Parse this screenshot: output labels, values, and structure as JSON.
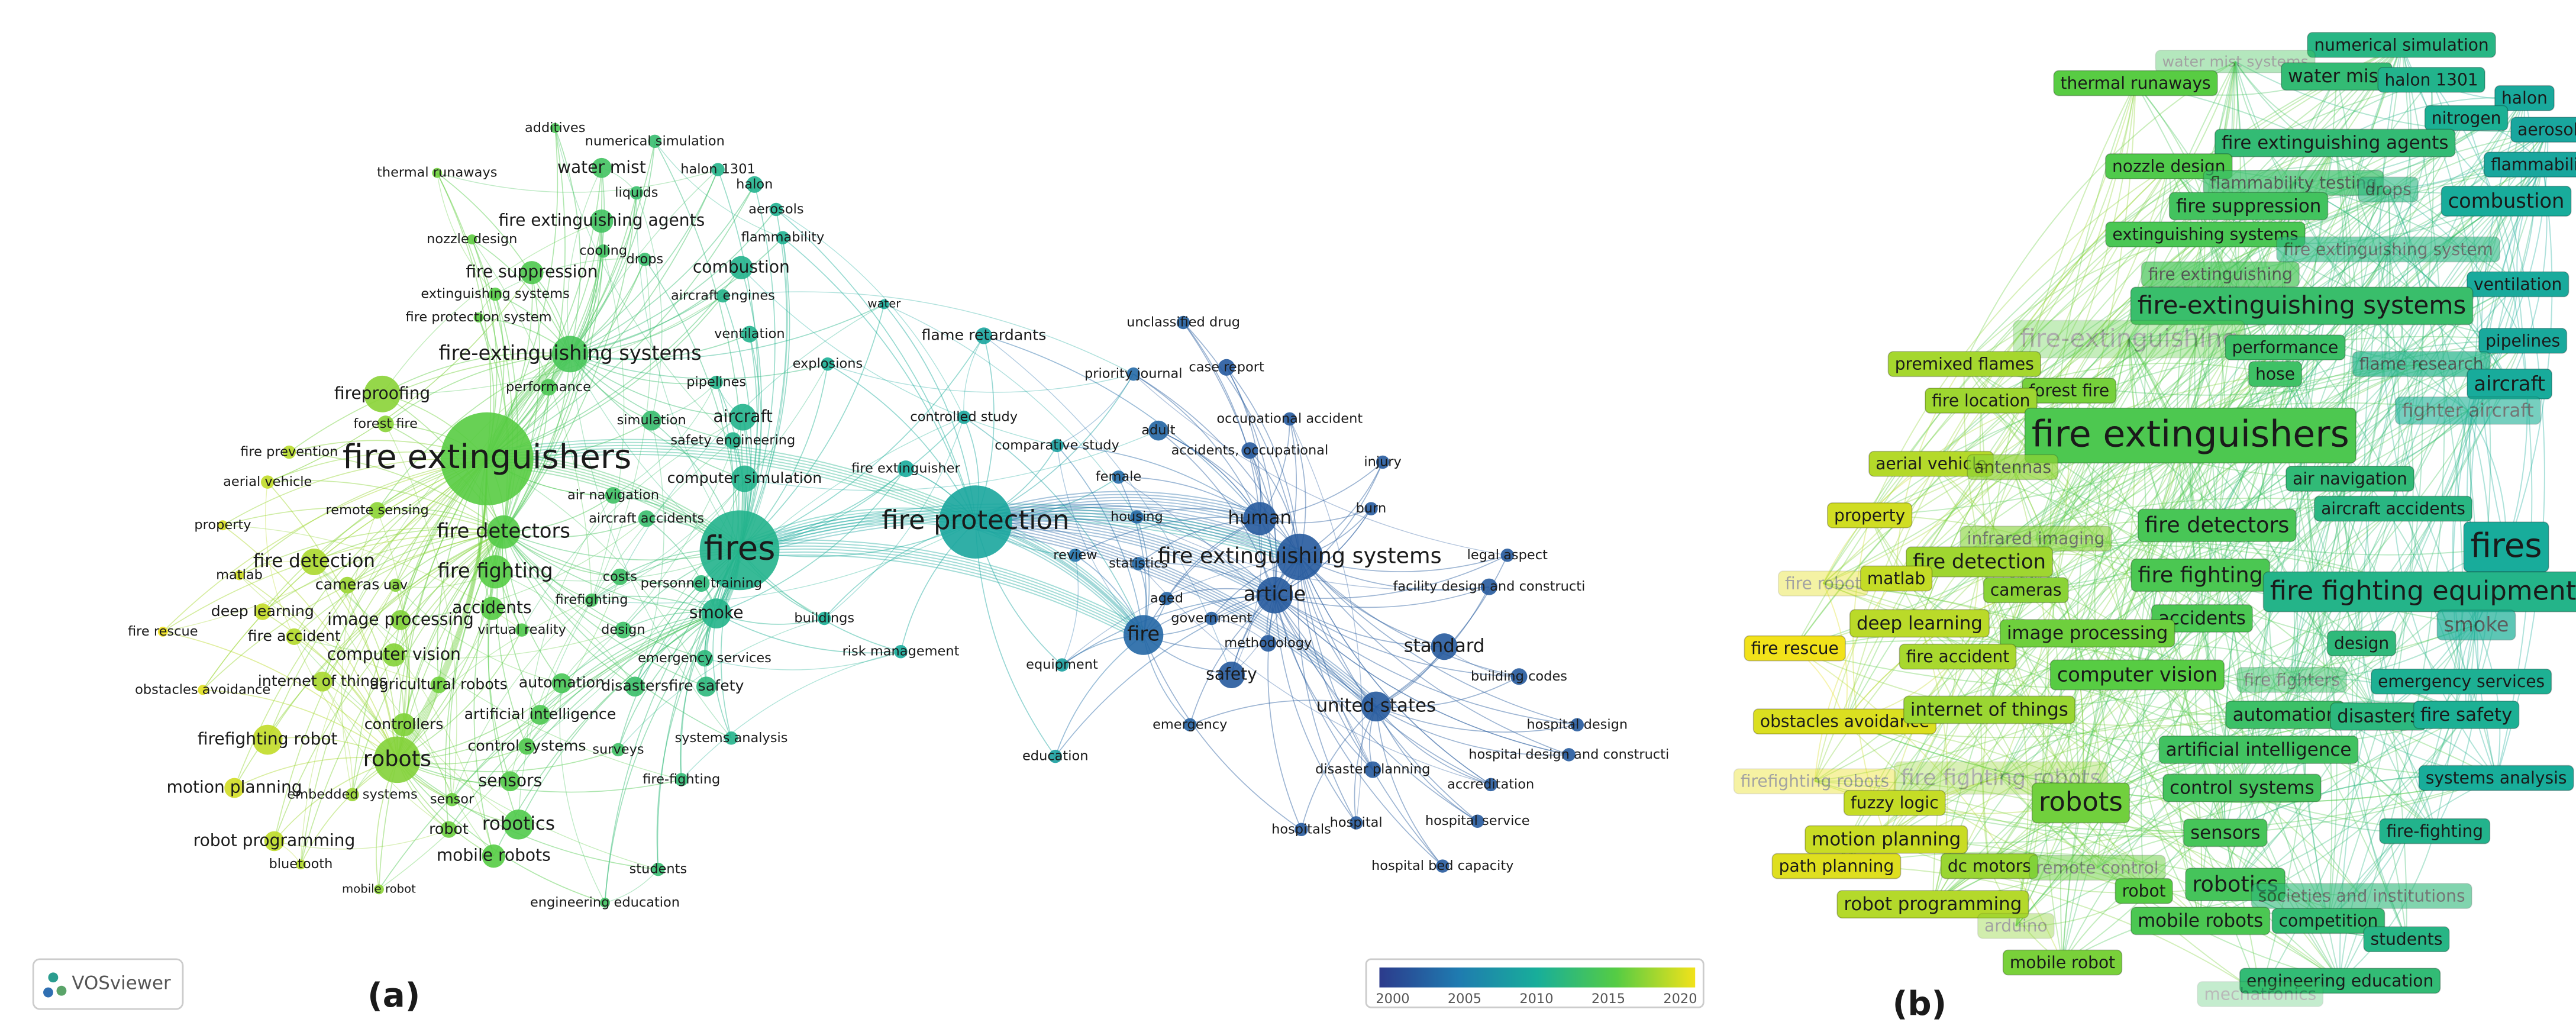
{
  "panel_a": {
    "caption": "(a)",
    "logo": "VOSviewer",
    "colorbar_ticks": [
      "2000",
      "2005",
      "2010",
      "2015",
      "2020"
    ],
    "nodes": [
      "fire extinguishers",
      "fires",
      "fire protection",
      "fire extinguishing systems",
      "article",
      "fire",
      "human",
      "standard",
      "united states",
      "safety",
      "fire-extinguishing systems",
      "robots",
      "robotics",
      "fire detectors",
      "fire fighting",
      "fire detection",
      "fireproofing",
      "smoke",
      "aircraft",
      "combustion",
      "fire suppression",
      "fire extinguishing agents",
      "water mist",
      "halon 1301",
      "halon",
      "aerosols",
      "flammability",
      "additives",
      "numerical simulation",
      "thermal runaways",
      "liquids",
      "nozzle design",
      "cooling",
      "drops",
      "extinguishing systems",
      "aircraft engines",
      "fire protection system",
      "ventilation",
      "performance",
      "forest fire",
      "simulation",
      "pipelines",
      "safety engineering",
      "fire prevention",
      "aerial vehicle",
      "air navigation",
      "computer simulation",
      "remote sensing",
      "aircraft accidents",
      "property",
      "matlab",
      "cameras",
      "uav",
      "costs",
      "personnel training",
      "firefighting",
      "deep learning",
      "image processing",
      "accidents",
      "virtual reality",
      "design",
      "fire rescue",
      "fire accident",
      "computer vision",
      "emergency services",
      "obstacles avoidance",
      "internet of things",
      "agricultural robots",
      "automation",
      "disasters",
      "fire safety",
      "artificial intelligence",
      "controllers",
      "control systems",
      "surveys",
      "systems analysis",
      "firefighting robot",
      "motion planning",
      "embedded systems",
      "sensors",
      "sensor",
      "fire-fighting",
      "robot",
      "robot programming",
      "mobile robots",
      "bluetooth",
      "students",
      "mobile robot",
      "engineering education",
      "water",
      "flame retardants",
      "unclassified drug",
      "case report",
      "priority journal",
      "explosions",
      "controlled study",
      "adult",
      "occupational accident",
      "comparative study",
      "accidents, occupational",
      "injury",
      "fire extinguisher",
      "female",
      "burn",
      "housing",
      "legal aspect",
      "review",
      "statistics",
      "facility design and constructi",
      "aged",
      "government",
      "buildings",
      "methodology",
      "risk management",
      "equipment",
      "building codes",
      "emergency",
      "hospital design",
      "education",
      "hospital design and constructi",
      "disaster planning",
      "accreditation",
      "hospital service",
      "hospitals",
      "hospital",
      "hospital bed capacity"
    ]
  },
  "panel_b": {
    "caption": "(b)",
    "labels": [
      "numerical simulation",
      "water mist systems",
      "thermal runaways",
      "water mist",
      "halon 1301",
      "halon",
      "nitrogen",
      "aerosol",
      "fire extinguishing agents",
      "nozzle design",
      "flammability testing",
      "drops",
      "flammability",
      "fire suppression",
      "combustion",
      "extinguishing systems",
      "fire extinguishing system",
      "fire extinguishing",
      "ventilation",
      "fire-extinguishing systems",
      "fire-extinguishing",
      "pipelines",
      "premixed flames",
      "performance",
      "flame research",
      "hose",
      "forest fire",
      "aircraft",
      "fire location",
      "fighter aircraft",
      "fire extinguishers",
      "aerial vehicle",
      "antennas",
      "air navigation",
      "aircraft accidents",
      "property",
      "fires",
      "fire detectors",
      "infrared imaging",
      "fire detection",
      "fire robot",
      "matlab",
      "cameras",
      "fire fighting",
      "fire fighting equipment",
      "accidents",
      "image processing",
      "deep learning",
      "smoke",
      "fire rescue",
      "fire accident",
      "design",
      "computer vision",
      "fire fighters",
      "emergency services",
      "obstacles avoidance",
      "internet of things",
      "automation",
      "disasters",
      "fire safety",
      "artificial intelligence",
      "firefighting robots",
      "fire fighting robots",
      "control systems",
      "systems analysis",
      "fuzzy logic",
      "robots",
      "sensors",
      "fire-fighting",
      "motion planning",
      "path planning",
      "dc motors",
      "remote control",
      "robotics",
      "robot",
      "societies and institutions",
      "robot programming",
      "mobile robots",
      "competition",
      "arduino",
      "students",
      "mobile robot",
      "engineering education",
      "mechatronics"
    ]
  }
}
